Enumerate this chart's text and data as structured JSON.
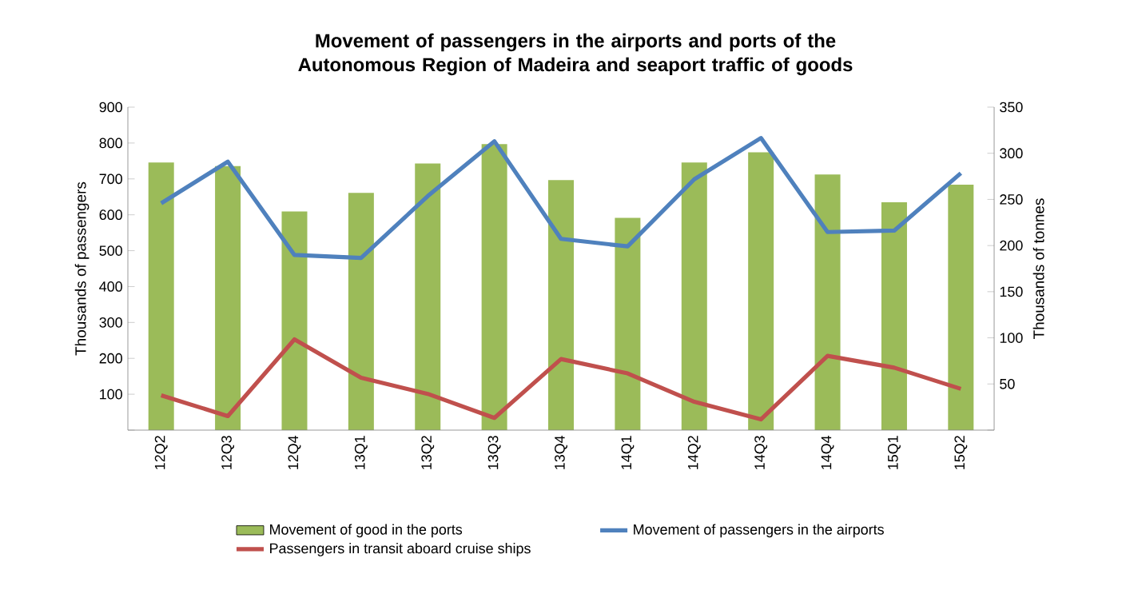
{
  "chart_data": {
    "type": "bar",
    "title": "Movement of passengers in the airports and ports of the Autonomous Region of Madeira and seaport traffic of goods",
    "ylabel": "Thousands of passengers",
    "y2label": "Thousands of tonnes",
    "categories": [
      "12Q2",
      "12Q3",
      "12Q4",
      "13Q1",
      "13Q2",
      "13Q3",
      "13Q4",
      "14Q1",
      "14Q2",
      "14Q3",
      "14Q4",
      "15Q1",
      "15Q2"
    ],
    "series": [
      {
        "name": "Movement of good in the ports",
        "color": "#9bbb59",
        "axis": "y2",
        "values": [
          290,
          286,
          237,
          257,
          289,
          310,
          271,
          230,
          290,
          301,
          277,
          247,
          266
        ]
      },
      {
        "name": "Movement of passengers in the airports",
        "color": "#4f81bd",
        "type": "line",
        "values": [
          632,
          748,
          488,
          480,
          652,
          805,
          533,
          512,
          699,
          814,
          552,
          556,
          716
        ]
      },
      {
        "name": "Passengers in transit aboard cruise ships",
        "color": "#c0504d",
        "type": "line",
        "values": [
          97,
          39,
          253,
          146,
          101,
          34,
          198,
          158,
          79,
          30,
          207,
          174,
          115
        ]
      }
    ],
    "ylim": [
      0,
      900
    ],
    "yticks": [
      {
        "value": 0,
        "label": null
      },
      100,
      200,
      300,
      400,
      500,
      600,
      700,
      800,
      900
    ],
    "y2lim": [
      0,
      350
    ],
    "y2ticks": [
      {
        "value": 0,
        "label": null
      },
      50,
      100,
      150,
      200,
      250,
      300,
      350
    ],
    "legend": "bottom"
  }
}
